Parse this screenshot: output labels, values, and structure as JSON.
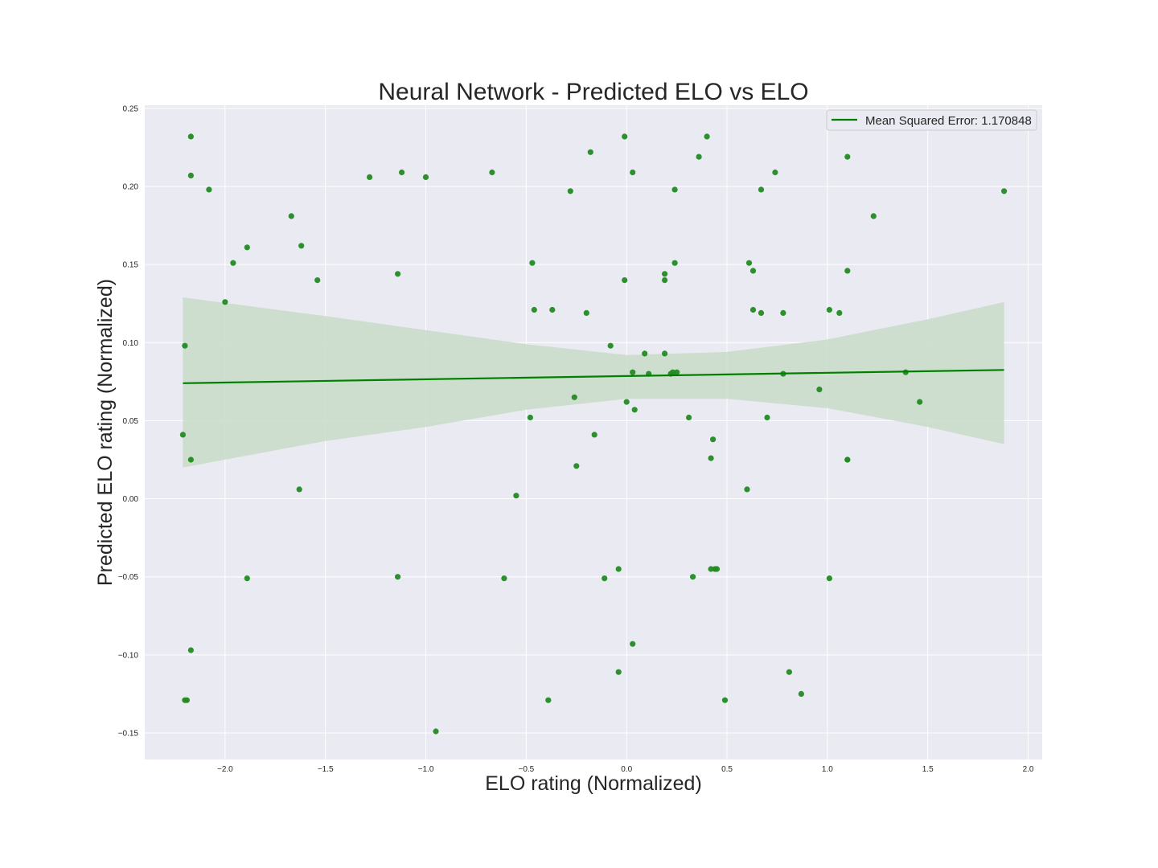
{
  "chart_data": {
    "type": "scatter",
    "title": "Neural Network - Predicted ELO vs ELO",
    "xlabel": "ELO rating  (Normalized)",
    "ylabel": "Predicted ELO rating (Normalized)",
    "xlim": [
      -2.4,
      2.07
    ],
    "ylim": [
      -0.167,
      0.252
    ],
    "x_ticks": [
      -2.0,
      -1.5,
      -1.0,
      -0.5,
      0.0,
      0.5,
      1.0,
      1.5,
      2.0
    ],
    "x_tick_labels": [
      "−2.0",
      "−1.5",
      "−1.0",
      "−0.5",
      "0.0",
      "0.5",
      "1.0",
      "1.5",
      "2.0"
    ],
    "y_ticks": [
      -0.15,
      -0.1,
      -0.05,
      0.0,
      0.05,
      0.1,
      0.15,
      0.2,
      0.25
    ],
    "y_tick_labels": [
      "−0.15",
      "−0.10",
      "−0.05",
      "0.00",
      "0.05",
      "0.10",
      "0.15",
      "0.20",
      "0.25"
    ],
    "grid": true,
    "legend_position": "top-right",
    "colors": {
      "points": "#228b22",
      "line": "#008000",
      "band": "#c8dcc8",
      "background": "#eaeaf2",
      "grid": "#ffffff"
    },
    "points": [
      [
        -2.17,
        0.232
      ],
      [
        -2.17,
        0.207
      ],
      [
        -2.08,
        0.198
      ],
      [
        -2.2,
        0.098
      ],
      [
        -2.21,
        0.041
      ],
      [
        -2.17,
        0.025
      ],
      [
        -2.17,
        -0.097
      ],
      [
        -2.2,
        -0.129
      ],
      [
        -2.19,
        -0.129
      ],
      [
        -2.0,
        0.126
      ],
      [
        -1.96,
        0.151
      ],
      [
        -1.89,
        0.161
      ],
      [
        -1.89,
        -0.051
      ],
      [
        -1.67,
        0.181
      ],
      [
        -1.62,
        0.162
      ],
      [
        -1.63,
        0.006
      ],
      [
        -1.54,
        0.14
      ],
      [
        -1.28,
        0.206
      ],
      [
        -1.12,
        0.209
      ],
      [
        -1.14,
        0.144
      ],
      [
        -1.14,
        -0.05
      ],
      [
        -1.0,
        0.206
      ],
      [
        -0.95,
        -0.149
      ],
      [
        -0.67,
        0.209
      ],
      [
        -0.61,
        -0.051
      ],
      [
        -0.55,
        0.002
      ],
      [
        -0.47,
        0.151
      ],
      [
        -0.46,
        0.121
      ],
      [
        -0.48,
        0.052
      ],
      [
        -0.39,
        -0.129
      ],
      [
        -0.37,
        0.121
      ],
      [
        -0.28,
        0.197
      ],
      [
        -0.26,
        0.065
      ],
      [
        -0.25,
        0.021
      ],
      [
        -0.2,
        0.119
      ],
      [
        -0.18,
        0.222
      ],
      [
        -0.16,
        0.041
      ],
      [
        -0.11,
        -0.051
      ],
      [
        -0.08,
        0.098
      ],
      [
        -0.04,
        -0.045
      ],
      [
        -0.04,
        -0.111
      ],
      [
        -0.01,
        0.232
      ],
      [
        -0.01,
        0.14
      ],
      [
        0.0,
        0.062
      ],
      [
        0.03,
        0.209
      ],
      [
        0.03,
        0.081
      ],
      [
        0.04,
        0.057
      ],
      [
        0.03,
        -0.093
      ],
      [
        0.09,
        0.093
      ],
      [
        0.11,
        0.08
      ],
      [
        0.19,
        0.144
      ],
      [
        0.19,
        0.14
      ],
      [
        0.19,
        0.093
      ],
      [
        0.22,
        0.08
      ],
      [
        0.23,
        0.081
      ],
      [
        0.24,
        0.198
      ],
      [
        0.24,
        0.151
      ],
      [
        0.25,
        0.081
      ],
      [
        0.31,
        0.052
      ],
      [
        0.33,
        -0.05
      ],
      [
        0.36,
        0.219
      ],
      [
        0.4,
        0.232
      ],
      [
        0.42,
        0.026
      ],
      [
        0.43,
        0.038
      ],
      [
        0.42,
        -0.045
      ],
      [
        0.44,
        -0.045
      ],
      [
        0.45,
        -0.045
      ],
      [
        0.49,
        -0.129
      ],
      [
        0.6,
        0.006
      ],
      [
        0.61,
        0.151
      ],
      [
        0.63,
        0.146
      ],
      [
        0.63,
        0.121
      ],
      [
        0.67,
        0.198
      ],
      [
        0.67,
        0.119
      ],
      [
        0.7,
        0.052
      ],
      [
        0.74,
        0.209
      ],
      [
        0.78,
        0.119
      ],
      [
        0.78,
        0.08
      ],
      [
        0.81,
        -0.111
      ],
      [
        0.87,
        -0.125
      ],
      [
        0.96,
        0.07
      ],
      [
        1.01,
        0.121
      ],
      [
        1.01,
        -0.051
      ],
      [
        1.06,
        0.119
      ],
      [
        1.1,
        0.219
      ],
      [
        1.1,
        0.146
      ],
      [
        1.1,
        0.025
      ],
      [
        1.1,
        0.025
      ],
      [
        1.23,
        0.181
      ],
      [
        1.39,
        0.081
      ],
      [
        1.46,
        0.062
      ],
      [
        1.88,
        0.197
      ]
    ],
    "regression": {
      "x": [
        -2.21,
        1.88
      ],
      "y": [
        0.074,
        0.0825
      ]
    },
    "confidence_band": {
      "x": [
        -2.21,
        -1.5,
        -1.0,
        -0.5,
        0.0,
        0.5,
        1.0,
        1.5,
        1.88
      ],
      "upper": [
        0.129,
        0.117,
        0.108,
        0.099,
        0.092,
        0.094,
        0.102,
        0.115,
        0.126
      ],
      "lower": [
        0.02,
        0.037,
        0.046,
        0.057,
        0.064,
        0.064,
        0.058,
        0.046,
        0.035
      ]
    },
    "legend": [
      {
        "label": "Mean Squared Error: 1.170848"
      }
    ]
  }
}
